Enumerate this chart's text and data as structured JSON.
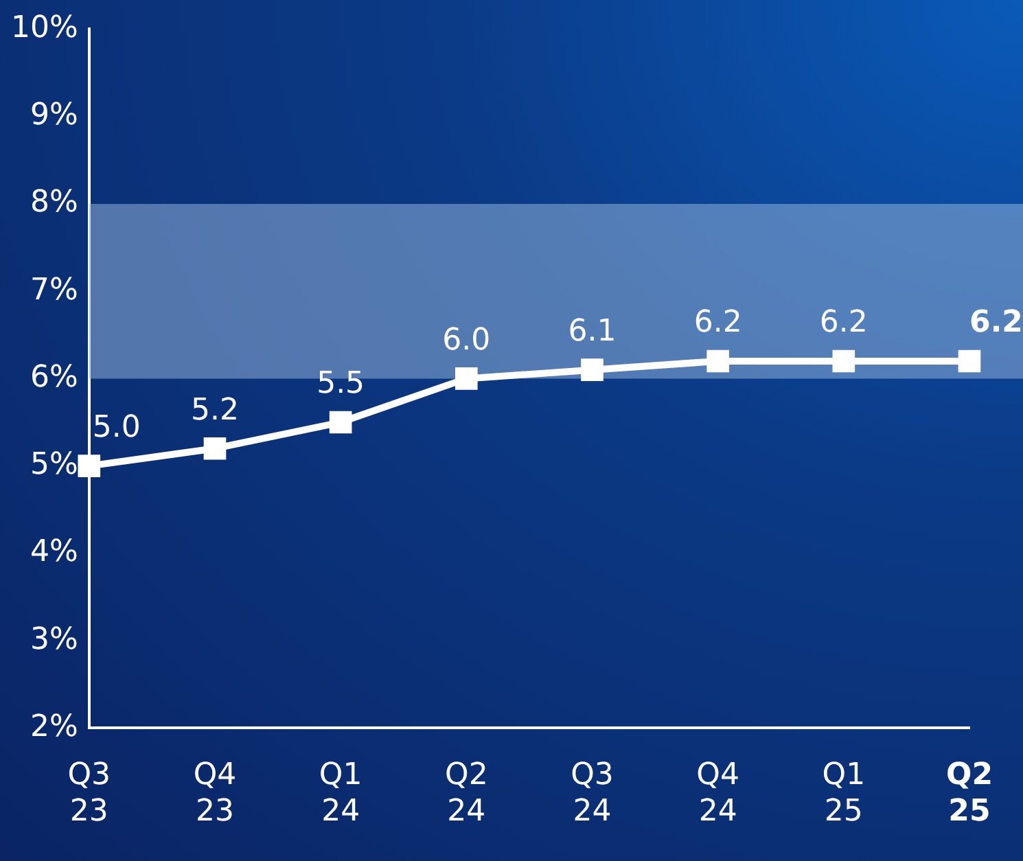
{
  "chart_data": {
    "type": "line",
    "categories": [
      "Q3 23",
      "Q4 23",
      "Q1 24",
      "Q2 24",
      "Q3 24",
      "Q4 24",
      "Q1 25",
      "Q2 25"
    ],
    "series": [
      {
        "color": "#ffffff",
        "values": [
          5.0,
          5.2,
          5.5,
          6.0,
          6.1,
          6.2,
          6.2,
          6.2
        ],
        "value_labels": [
          "5.0",
          "5.2",
          "5.5",
          "6.0",
          "6.1",
          "6.2",
          "6.2",
          "6.2"
        ]
      }
    ],
    "ylim": [
      2,
      10
    ],
    "yticks": [
      {
        "value": 2,
        "label": "2%"
      },
      {
        "value": 3,
        "label": "3%"
      },
      {
        "value": 4,
        "label": "4%"
      },
      {
        "value": 5,
        "label": "5%"
      },
      {
        "value": 6,
        "label": "6%"
      },
      {
        "value": 7,
        "label": "7%"
      },
      {
        "value": 8,
        "label": "8%"
      },
      {
        "value": 9,
        "label": "9%"
      },
      {
        "value": 10,
        "label": "10%"
      }
    ],
    "bands": [
      {
        "axis": "y",
        "from": 6,
        "to": 8,
        "color": "#8fb0d8"
      }
    ],
    "marker": "square",
    "line_style": "solid",
    "grid": false,
    "legend": false
  }
}
